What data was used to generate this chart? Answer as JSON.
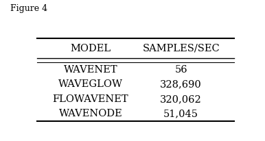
{
  "title": "Figure 4",
  "col1_header": "Model",
  "col2_header": "Samples/sec",
  "rows": [
    [
      "WaveNet",
      "56"
    ],
    [
      "WaveGlow",
      "328,690"
    ],
    [
      "FloWaveNet",
      "320,062"
    ],
    [
      "WaveNODE",
      "51,045"
    ]
  ],
  "background_color": "#ffffff",
  "text_color": "#000000",
  "font_size": 10.5,
  "header_font_size": 10.5
}
